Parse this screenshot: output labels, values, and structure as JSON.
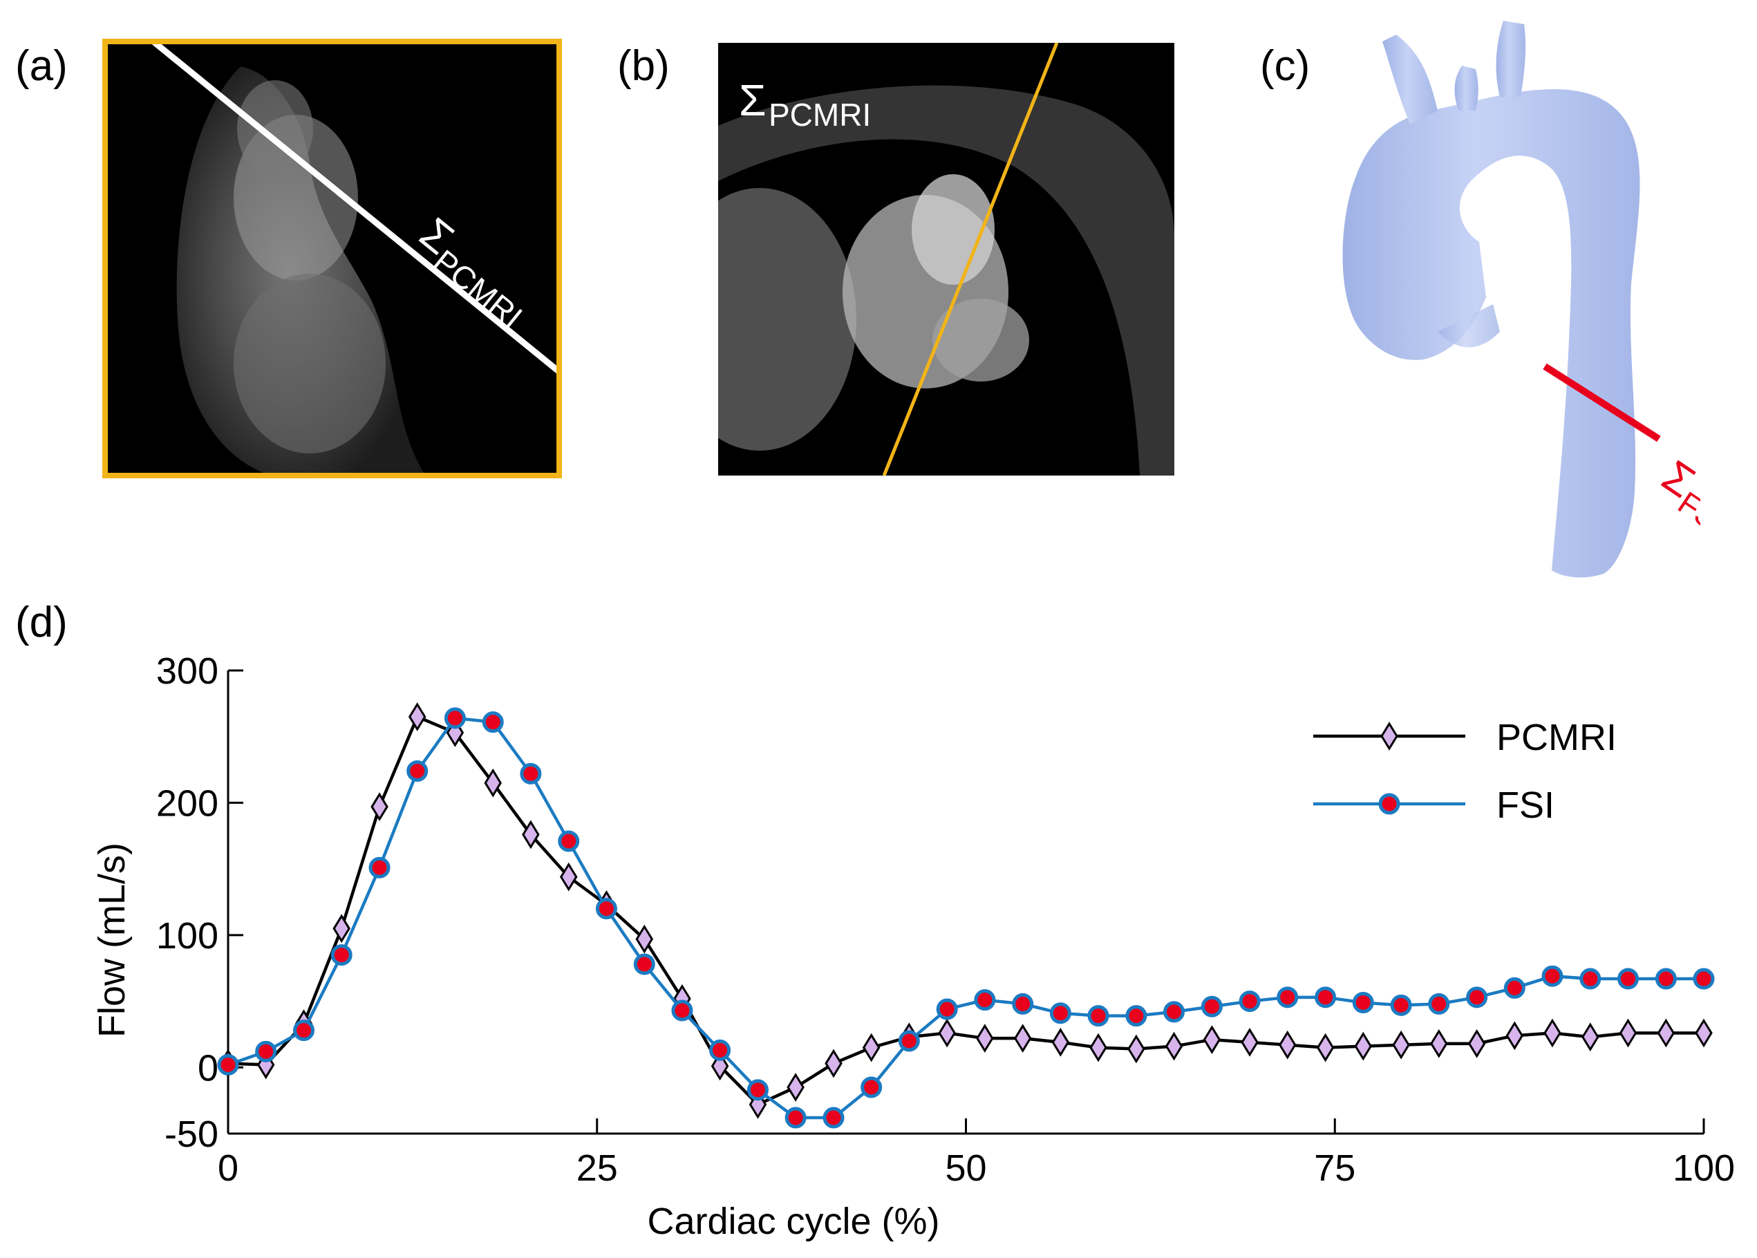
{
  "panels": {
    "a": {
      "label": "(a)",
      "plane_label": "Σ",
      "plane_sub": "PCMRI"
    },
    "b": {
      "label": "(b)",
      "plane_label": "Σ",
      "plane_sub": "PCMRI"
    },
    "c": {
      "label": "(c)",
      "plane_label": "Σ",
      "plane_sub": "FSI"
    },
    "d": {
      "label": "(d)"
    }
  },
  "colors": {
    "frame_orange": "#F2B418",
    "fsi_plane_red": "#E8001C",
    "pcmri_line": "#000000",
    "pcmri_marker": "#D7B4EC",
    "fsi_line": "#1B7BC2",
    "fsi_marker": "#E8001C",
    "aorta_fill": "#B4C4EE"
  },
  "chart_data": {
    "type": "line",
    "xlabel": "Cardiac cycle (%)",
    "ylabel": "Flow (mL/s)",
    "xlim": [
      0,
      100
    ],
    "ylim": [
      -50,
      300
    ],
    "xticks": [
      "0",
      "25",
      "50",
      "75",
      "100"
    ],
    "yticks": [
      "-50",
      "0",
      "100",
      "200",
      "300"
    ],
    "xtick_values": [
      0,
      25,
      50,
      75,
      100
    ],
    "ytick_values": [
      -50,
      0,
      100,
      200,
      300
    ],
    "legend_position": "top-right",
    "grid": false,
    "series": [
      {
        "name": "PCMRI",
        "marker": "diamond",
        "x": [
          0,
          2.56,
          5.13,
          7.69,
          10.26,
          12.82,
          15.38,
          17.95,
          20.51,
          23.08,
          25.64,
          28.21,
          30.77,
          33.33,
          35.9,
          38.46,
          41.03,
          43.59,
          46.15,
          48.72,
          51.28,
          53.85,
          56.41,
          58.97,
          61.54,
          64.1,
          66.67,
          69.23,
          71.79,
          74.36,
          76.92,
          79.49,
          82.05,
          84.62,
          87.18,
          89.74,
          92.31,
          94.87,
          97.44,
          100
        ],
        "y": [
          3,
          2,
          33,
          105,
          197,
          265,
          253,
          215,
          176,
          144,
          123,
          97,
          52,
          1,
          -28,
          -15,
          3,
          15,
          23,
          26,
          22,
          22,
          19,
          15,
          14,
          16,
          21,
          19,
          17,
          15,
          16,
          17,
          18,
          18,
          24,
          26,
          23,
          26,
          26,
          26
        ]
      },
      {
        "name": "FSI",
        "marker": "circle",
        "x": [
          0,
          2.56,
          5.13,
          7.69,
          10.26,
          12.82,
          15.38,
          17.95,
          20.51,
          23.08,
          25.64,
          28.21,
          30.77,
          33.33,
          35.9,
          38.46,
          41.03,
          43.59,
          46.15,
          48.72,
          51.28,
          53.85,
          56.41,
          58.97,
          61.54,
          64.1,
          66.67,
          69.23,
          71.79,
          74.36,
          76.92,
          79.49,
          82.05,
          84.62,
          87.18,
          89.74,
          92.31,
          94.87,
          97.44,
          100
        ],
        "y": [
          2,
          12,
          28,
          85,
          151,
          224,
          264,
          261,
          222,
          171,
          120,
          78,
          43,
          13,
          -17,
          -38,
          -38,
          -15,
          20,
          44,
          51,
          48,
          41,
          39,
          39,
          42,
          46,
          50,
          53,
          53,
          49,
          47,
          48,
          53,
          60,
          69,
          67,
          67,
          67,
          67
        ]
      }
    ]
  }
}
